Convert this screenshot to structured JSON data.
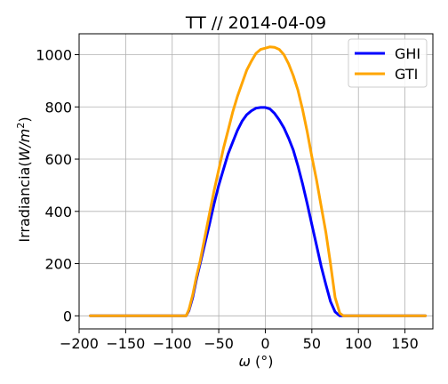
{
  "chart_data": {
    "type": "line",
    "title": "TT // 2014-04-09",
    "xlabel_symbol": "ω",
    "xlabel_unit": " (°)",
    "ylabel_text": "Irradiancia(",
    "ylabel_unit_w": "W/m",
    "ylabel_unit_exp": "2",
    "ylabel_close": ")",
    "xlim": [
      -200,
      180
    ],
    "ylim": [
      -50,
      1080
    ],
    "xticks": [
      -200,
      -150,
      -100,
      -50,
      0,
      50,
      100,
      150
    ],
    "xtick_labels": [
      "−200",
      "−150",
      "−100",
      "−50",
      "0",
      "50",
      "100",
      "150"
    ],
    "yticks": [
      0,
      200,
      400,
      600,
      800,
      1000
    ],
    "ytick_labels": [
      "0",
      "200",
      "400",
      "600",
      "800",
      "1000"
    ],
    "grid": true,
    "legend_placement": "top-right",
    "series": [
      {
        "name": "GHI",
        "color": "#0000ff",
        "x": [
          -188,
          -150,
          -100,
          -85,
          -82,
          -78,
          -74,
          -70,
          -65,
          -60,
          -55,
          -50,
          -45,
          -40,
          -35,
          -30,
          -25,
          -20,
          -15,
          -10,
          -5,
          0,
          5,
          10,
          15,
          20,
          25,
          30,
          35,
          40,
          45,
          50,
          55,
          60,
          65,
          70,
          75,
          80,
          84,
          85,
          100,
          150,
          172
        ],
        "y": [
          0,
          0,
          0,
          0,
          20,
          70,
          140,
          200,
          275,
          350,
          430,
          500,
          560,
          620,
          665,
          710,
          745,
          770,
          785,
          795,
          798,
          798,
          792,
          775,
          750,
          720,
          680,
          635,
          575,
          505,
          430,
          350,
          270,
          190,
          120,
          55,
          15,
          0,
          0,
          0,
          0,
          0,
          0
        ]
      },
      {
        "name": "GTI",
        "color": "#ffa500",
        "x": [
          -188,
          -150,
          -100,
          -85,
          -82,
          -78,
          -74,
          -70,
          -65,
          -60,
          -55,
          -50,
          -45,
          -40,
          -35,
          -30,
          -25,
          -20,
          -15,
          -10,
          -5,
          0,
          5,
          10,
          15,
          20,
          25,
          30,
          35,
          40,
          45,
          50,
          55,
          60,
          65,
          70,
          75,
          80,
          84,
          85,
          100,
          150,
          172
        ],
        "y": [
          0,
          0,
          0,
          0,
          25,
          80,
          150,
          210,
          300,
          390,
          480,
          560,
          640,
          710,
          780,
          840,
          890,
          940,
          975,
          1005,
          1020,
          1025,
          1030,
          1028,
          1020,
          1000,
          965,
          920,
          865,
          790,
          705,
          610,
          520,
          420,
          320,
          200,
          70,
          10,
          0,
          0,
          0,
          0,
          0
        ]
      }
    ]
  }
}
